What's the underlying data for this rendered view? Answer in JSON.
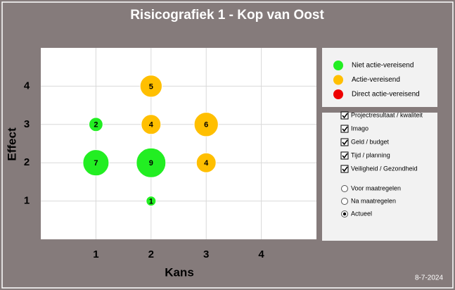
{
  "chart_data": {
    "type": "bubble",
    "title": "Risicografiek 1 - Kop van Oost",
    "x_label": "Kans",
    "y_label": "Effect",
    "xlim": [
      0,
      5
    ],
    "ylim": [
      0,
      5
    ],
    "xticks": [
      1,
      2,
      3,
      4
    ],
    "yticks": [
      1,
      2,
      3,
      4
    ],
    "grid": true,
    "series": [
      {
        "name": "Niet actie-vereisend",
        "color": "#22ee22",
        "x": [
          1,
          1,
          2,
          2
        ],
        "y": [
          3,
          2,
          2,
          1
        ],
        "sizes": [
          2,
          7,
          9,
          1
        ]
      },
      {
        "name": "Actie-vereisend",
        "color": "#ffbf00",
        "x": [
          2,
          2,
          3,
          3
        ],
        "y": [
          4,
          3,
          3,
          2
        ],
        "sizes": [
          5,
          4,
          6,
          4
        ]
      },
      {
        "name": "Direct actie-vereisend",
        "color": "#ee0000",
        "x": [],
        "y": [],
        "sizes": []
      }
    ]
  },
  "controls": {
    "checkboxes": [
      {
        "label": "Projectresultaat / kwaliteit",
        "checked": true
      },
      {
        "label": "Imago",
        "checked": true
      },
      {
        "label": "Geld / budget",
        "checked": true
      },
      {
        "label": "Tijd / planning",
        "checked": true
      },
      {
        "label": "Veiligheid / Gezondheid",
        "checked": true
      }
    ],
    "radios": [
      {
        "label": "Voor maatregelen",
        "checked": false
      },
      {
        "label": "Na maatregelen",
        "checked": false
      },
      {
        "label": "Actueel",
        "checked": true
      }
    ]
  },
  "footer": {
    "date": "8-7-2024"
  }
}
